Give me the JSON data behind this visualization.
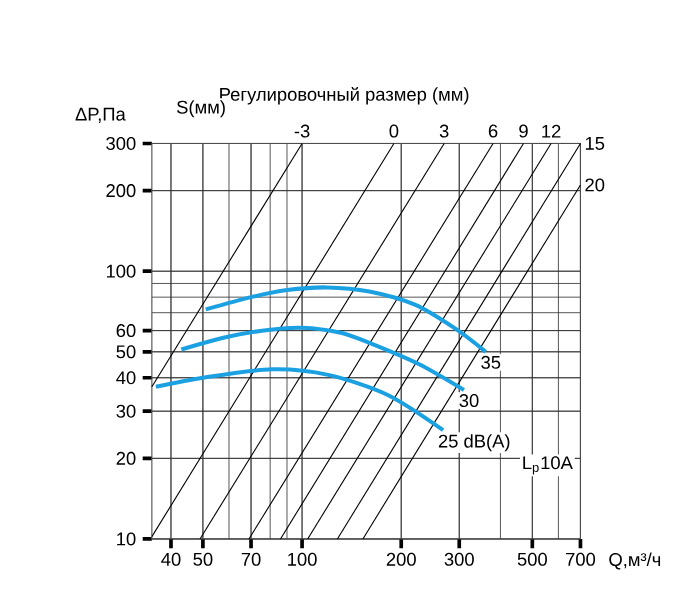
{
  "chart_data": {
    "type": "line",
    "xlabel": "Q,м³/ч",
    "ylabel": "ΔP,Па",
    "log": "xy",
    "grid": true,
    "marker": "none",
    "line_style": "solid",
    "xlim": [
      35,
      700
    ],
    "ylim": [
      10,
      300
    ],
    "xticks": [
      40,
      50,
      70,
      100,
      200,
      300,
      500,
      700
    ],
    "yticks": [
      10,
      20,
      30,
      40,
      50,
      60,
      100,
      200,
      300
    ],
    "annotations": [
      "Регулировочный размер (мм)",
      "S(мм)",
      "L$_{p}$10A"
    ],
    "series": [
      {
        "name": "-3",
        "color": "#000000",
        "x": [
          35,
          100
        ],
        "values": [
          37,
          300
        ]
      },
      {
        "name": "0",
        "color": "#000000",
        "x": [
          35,
          190
        ],
        "values": [
          10.2,
          300
        ]
      },
      {
        "name": "3",
        "color": "#000000",
        "x": [
          49,
          270
        ],
        "values": [
          10,
          300
        ]
      },
      {
        "name": "6",
        "color": "#000000",
        "x": [
          69,
          380
        ],
        "values": [
          10,
          300
        ]
      },
      {
        "name": "9",
        "color": "#000000",
        "x": [
          86,
          470
        ],
        "values": [
          10,
          300
        ]
      },
      {
        "name": "12",
        "color": "#000000",
        "x": [
          104,
          570
        ],
        "values": [
          10,
          300
        ]
      },
      {
        "name": "15",
        "color": "#000000",
        "x": [
          128,
          700
        ],
        "values": [
          10,
          300
        ]
      },
      {
        "name": "20",
        "color": "#000000",
        "x": [
          153,
          700
        ],
        "values": [
          10,
          210
        ]
      },
      {
        "name": "35",
        "color": "#1ba1e2",
        "x": [
          51,
          70,
          90,
          119,
          160,
          220,
          292,
          361
        ],
        "values": [
          72,
          80,
          85,
          87,
          84,
          75,
          61,
          50
        ]
      },
      {
        "name": "30",
        "color": "#1ba1e2",
        "x": [
          43,
          60,
          80,
          100,
          130,
          160,
          226,
          310
        ],
        "values": [
          51,
          57,
          60.5,
          61.5,
          59,
          54,
          45,
          36
        ]
      },
      {
        "name": "25 dB(A)",
        "color": "#1ba1e2",
        "x": [
          36,
          50,
          81,
          120,
          182,
          268
        ],
        "values": [
          37,
          40,
          43,
          41,
          34.5,
          25.5
        ]
      }
    ]
  }
}
